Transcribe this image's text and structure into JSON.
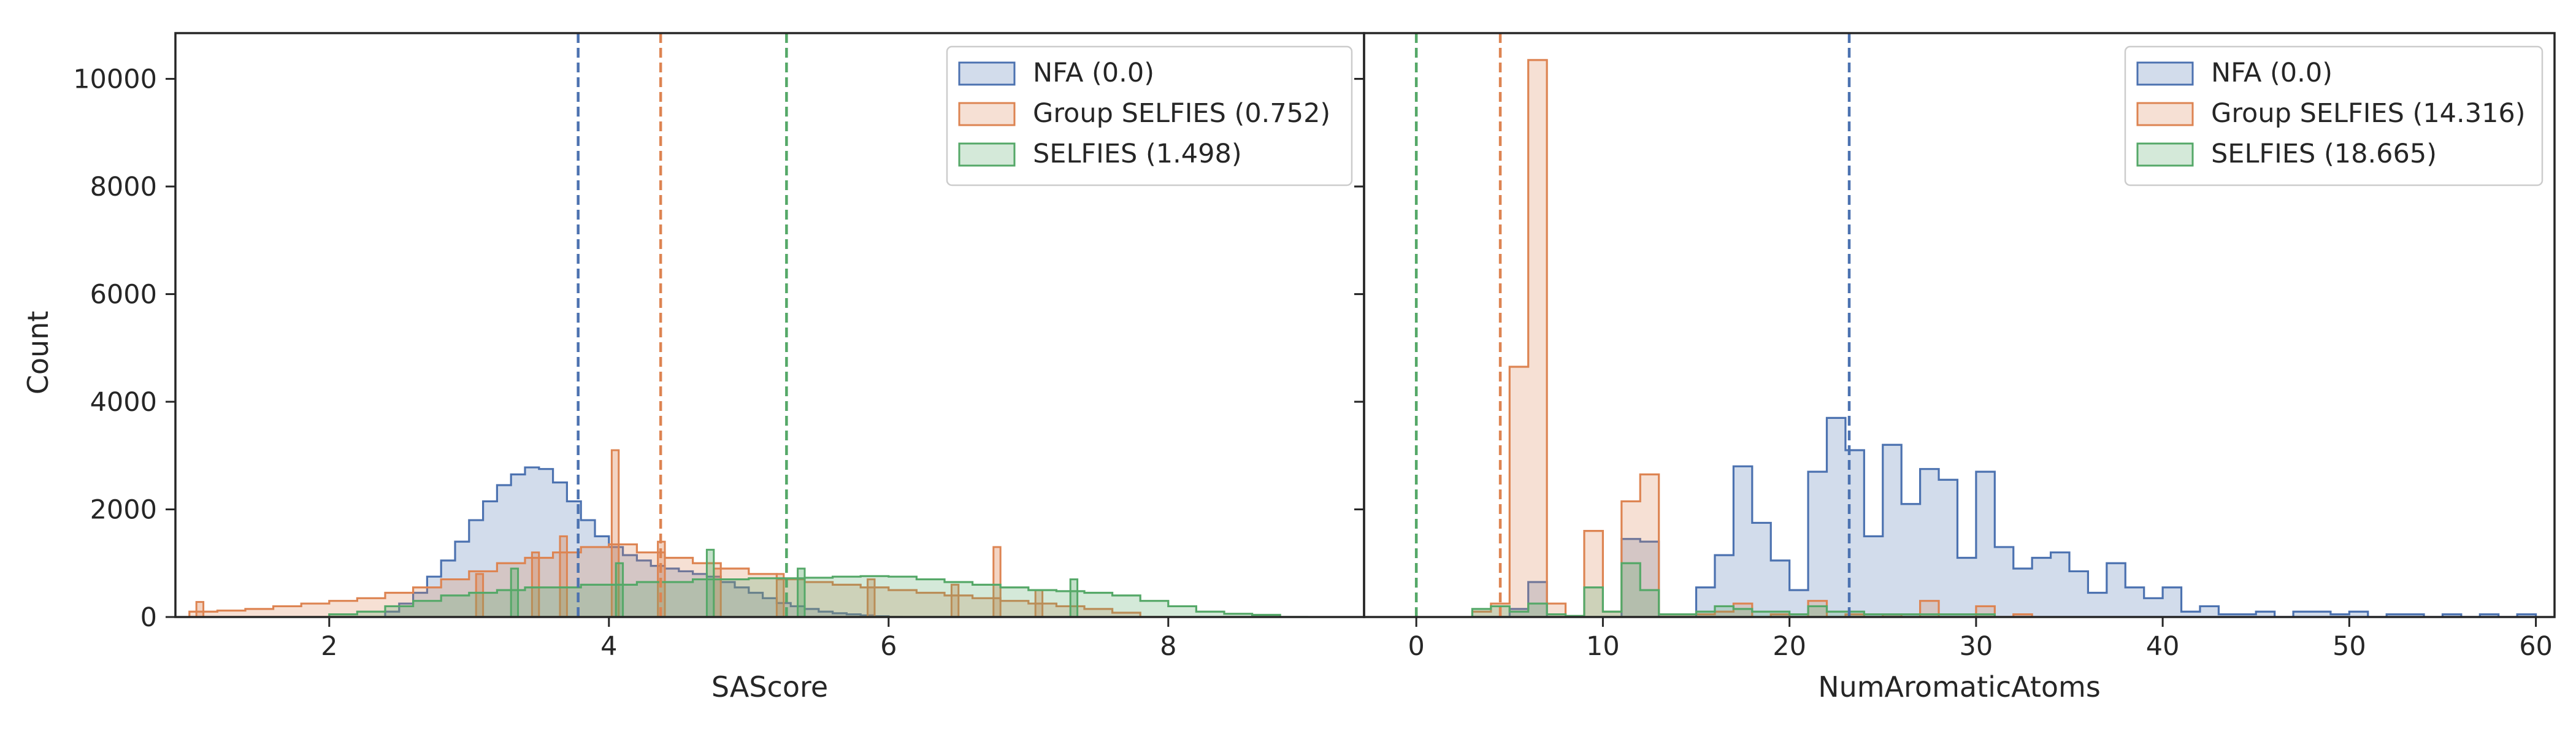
{
  "figure": {
    "ylabel": "Count"
  },
  "chart_data": [
    {
      "type": "histogram",
      "xlabel": "SAScore",
      "ylabel": "Count",
      "xlim": [
        0.9,
        9.4
      ],
      "ylim": [
        0,
        10850
      ],
      "xticks": [
        2,
        4,
        6,
        8
      ],
      "yticks": [
        0,
        2000,
        4000,
        6000,
        8000,
        10000
      ],
      "legend_position": "top-right",
      "series": [
        {
          "name": "NFA (0.0)",
          "color": "#4c72b0",
          "vline": 3.78,
          "bins": [
            2.4,
            2.5,
            2.6,
            2.7,
            2.8,
            2.9,
            3.0,
            3.1,
            3.2,
            3.3,
            3.4,
            3.5,
            3.6,
            3.7,
            3.8,
            3.9,
            4.0,
            4.1,
            4.2,
            4.3,
            4.4,
            4.5,
            4.6,
            4.7,
            4.8,
            4.9,
            5.0,
            5.1,
            5.2,
            5.3,
            5.4,
            5.5,
            5.6,
            5.7,
            5.8,
            5.9,
            6.0
          ],
          "counts": [
            100,
            250,
            450,
            750,
            1050,
            1400,
            1800,
            2150,
            2450,
            2650,
            2780,
            2750,
            2500,
            2150,
            1800,
            1500,
            1300,
            1150,
            1050,
            950,
            900,
            850,
            800,
            750,
            650,
            550,
            450,
            350,
            260,
            200,
            150,
            100,
            70,
            50,
            30,
            15
          ]
        },
        {
          "name": "Group SELFIES (0.752)",
          "color": "#dd8452",
          "vline": 4.37,
          "bins": [
            1.0,
            1.2,
            1.4,
            1.6,
            1.8,
            2.0,
            2.2,
            2.4,
            2.6,
            2.8,
            3.0,
            3.2,
            3.4,
            3.6,
            3.8,
            4.0,
            4.2,
            4.4,
            4.6,
            4.8,
            5.0,
            5.2,
            5.4,
            5.6,
            5.8,
            6.0,
            6.2,
            6.4,
            6.6,
            6.8,
            7.0,
            7.2,
            7.4,
            7.6,
            7.8
          ],
          "counts": [
            100,
            120,
            150,
            200,
            250,
            300,
            350,
            450,
            550,
            700,
            850,
            1000,
            1100,
            1200,
            1300,
            1350,
            1200,
            1100,
            1000,
            900,
            800,
            700,
            650,
            600,
            550,
            500,
            450,
            400,
            350,
            300,
            250,
            200,
            150,
            80
          ],
          "spikes": [
            [
              1.05,
              280
            ],
            [
              3.05,
              800
            ],
            [
              3.45,
              1200
            ],
            [
              3.65,
              1500
            ],
            [
              4.02,
              3100
            ],
            [
              4.35,
              1400
            ],
            [
              4.75,
              900
            ],
            [
              5.2,
              800
            ],
            [
              5.85,
              700
            ],
            [
              6.45,
              600
            ],
            [
              6.75,
              1300
            ],
            [
              7.05,
              500
            ]
          ]
        },
        {
          "name": "SELFIES (1.498)",
          "color": "#55a868",
          "vline": 5.27,
          "bins": [
            2.0,
            2.2,
            2.4,
            2.6,
            2.8,
            3.0,
            3.2,
            3.4,
            3.6,
            3.8,
            4.0,
            4.2,
            4.4,
            4.6,
            4.8,
            5.0,
            5.2,
            5.4,
            5.6,
            5.8,
            6.0,
            6.2,
            6.4,
            6.6,
            6.8,
            7.0,
            7.2,
            7.4,
            7.6,
            7.8,
            8.0,
            8.2,
            8.4,
            8.6,
            8.8
          ],
          "counts": [
            50,
            100,
            200,
            300,
            400,
            450,
            500,
            550,
            550,
            600,
            600,
            650,
            650,
            700,
            700,
            720,
            720,
            730,
            750,
            760,
            750,
            700,
            650,
            600,
            550,
            500,
            480,
            450,
            400,
            300,
            200,
            100,
            60,
            40
          ],
          "spikes": [
            [
              3.3,
              900
            ],
            [
              4.05,
              1000
            ],
            [
              4.7,
              1250
            ],
            [
              5.35,
              900
            ],
            [
              7.3,
              700
            ]
          ]
        }
      ]
    },
    {
      "type": "histogram",
      "xlabel": "NumAromaticAtoms",
      "xlim": [
        -2.8,
        61
      ],
      "ylim": [
        0,
        10850
      ],
      "xticks": [
        0,
        10,
        20,
        30,
        40,
        50,
        60
      ],
      "legend_position": "top-right",
      "series": [
        {
          "name": "NFA (0.0)",
          "color": "#4c72b0",
          "vline": 23.2,
          "bins": [
            3,
            4,
            5,
            6,
            7,
            8,
            9,
            10,
            11,
            12,
            13,
            14,
            15,
            16,
            17,
            18,
            19,
            20,
            21,
            22,
            23,
            24,
            25,
            26,
            27,
            28,
            29,
            30,
            31,
            32,
            33,
            34,
            35,
            36,
            37,
            38,
            39,
            40,
            41,
            42,
            43,
            44,
            45,
            46,
            47,
            48,
            49,
            50,
            51,
            52,
            53,
            54,
            55,
            56,
            57,
            58,
            59
          ],
          "counts": [
            0,
            0,
            150,
            650,
            0,
            0,
            0,
            0,
            1450,
            1400,
            0,
            0,
            550,
            1150,
            2800,
            1750,
            1050,
            500,
            2700,
            3700,
            3100,
            1500,
            3200,
            2100,
            2750,
            2550,
            1100,
            2700,
            1300,
            900,
            1100,
            1200,
            850,
            450,
            1000,
            550,
            350,
            550,
            100,
            200,
            50,
            50,
            100,
            0,
            100,
            100,
            50,
            100,
            0,
            50,
            50,
            0,
            50,
            0,
            50,
            0,
            50
          ],
          "widthNote": "1 per bin"
        },
        {
          "name": "Group SELFIES (14.316)",
          "color": "#dd8452",
          "vline": 4.5,
          "bins": [
            3,
            4,
            5,
            6,
            7,
            8,
            9,
            10,
            11,
            12,
            13,
            14,
            15,
            16,
            17,
            18,
            19,
            20,
            21,
            22,
            23,
            24,
            25,
            26,
            27,
            28,
            29,
            30,
            31,
            32
          ],
          "counts": [
            100,
            250,
            4650,
            10350,
            250,
            0,
            1600,
            100,
            2150,
            2650,
            50,
            50,
            50,
            100,
            250,
            0,
            50,
            0,
            300,
            0,
            50,
            0,
            50,
            0,
            300,
            0,
            0,
            200,
            0,
            50
          ]
        },
        {
          "name": "SELFIES (18.665)",
          "color": "#55a868",
          "vline": 0.0,
          "bins": [
            3,
            4,
            5,
            6,
            7,
            8,
            9,
            10,
            11,
            12,
            13,
            14,
            15,
            16,
            17,
            18,
            19,
            20,
            21,
            22,
            23,
            24,
            25,
            26,
            27,
            28,
            29,
            30
          ],
          "counts": [
            150,
            200,
            100,
            250,
            50,
            20,
            550,
            100,
            1000,
            500,
            50,
            50,
            100,
            200,
            150,
            100,
            100,
            50,
            200,
            100,
            100,
            50,
            50,
            50,
            50,
            50,
            50,
            50
          ]
        }
      ]
    }
  ]
}
